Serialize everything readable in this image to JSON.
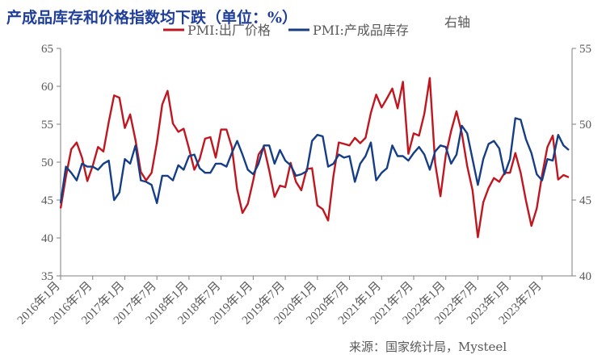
{
  "chart_data": {
    "type": "line",
    "title": "产成品库存和价格指数均下跌（单位：%）",
    "right_axis_note": "右轴",
    "source": "来源：国家统计局，Mysteel",
    "y_left": {
      "min": 35,
      "max": 65,
      "ticks": [
        "35",
        "40",
        "45",
        "50",
        "55",
        "60",
        "65"
      ]
    },
    "y_right": {
      "min": 40,
      "max": 55,
      "ticks": [
        "40",
        "45",
        "50",
        "55"
      ]
    },
    "x_tick_labels": [
      "2016年1月",
      "2016年7月",
      "2017年1月",
      "2017年7月",
      "2018年1月",
      "2018年7月",
      "2019年1月",
      "2019年7月",
      "2020年1月",
      "2020年7月",
      "2021年1月",
      "2021年7月",
      "2022年1月",
      "2022年7月",
      "2023年1月",
      "2023年7月"
    ],
    "colors": {
      "series1": "#c0161f",
      "series2": "#163e86",
      "axis": "#7f7f7f",
      "title": "#1f3f99"
    },
    "series": [
      {
        "name": "PMI:出厂价格",
        "axis": "left",
        "values": [
          43.9,
          48.1,
          51.7,
          52.6,
          50.6,
          47.5,
          49.5,
          52.0,
          51.4,
          55.3,
          58.8,
          58.5,
          54.5,
          56.3,
          52.9,
          48.7,
          47.6,
          48.6,
          52.6,
          57.6,
          59.4,
          55.1,
          54.0,
          54.4,
          51.8,
          49.0,
          50.4,
          53.1,
          53.3,
          50.6,
          54.3,
          54.3,
          52.0,
          46.4,
          43.3,
          44.5,
          47.6,
          51.0,
          52.0,
          48.9,
          45.4,
          46.9,
          46.7,
          49.9,
          47.4,
          46.3,
          49.1,
          49.2,
          44.3,
          43.8,
          42.3,
          48.2,
          52.6,
          52.4,
          52.2,
          53.2,
          52.5,
          53.2,
          56.5,
          58.9,
          57.2,
          58.4,
          59.7,
          57.1,
          60.6,
          51.1,
          53.8,
          53.5,
          56.4,
          61.1,
          49.9,
          45.5,
          50.9,
          54.1,
          56.7,
          53.8,
          49.5,
          46.3,
          40.1,
          44.7,
          46.6,
          47.9,
          47.4,
          48.6,
          48.6,
          51.2,
          48.6,
          44.9,
          41.6,
          43.9,
          48.3,
          52.0,
          53.5,
          47.7,
          48.3,
          48.0
        ]
      },
      {
        "name": "PMI:产成品库存",
        "axis": "right",
        "values": [
          44.8,
          47.2,
          46.8,
          46.3,
          47.4,
          47.2,
          47.2,
          47.0,
          47.4,
          47.6,
          45.0,
          45.5,
          47.7,
          47.4,
          48.6,
          46.3,
          46.2,
          46.0,
          44.8,
          46.6,
          46.6,
          46.3,
          47.3,
          47.0,
          47.9,
          48.0,
          47.1,
          46.8,
          46.8,
          47.4,
          47.4,
          47.2,
          48.1,
          48.9,
          48.0,
          47.0,
          46.7,
          47.4,
          48.6,
          48.6,
          47.4,
          48.3,
          47.6,
          47.3,
          46.6,
          46.7,
          46.9,
          48.9,
          49.3,
          49.2,
          47.2,
          47.4,
          48.0,
          47.8,
          47.9,
          46.2,
          47.4,
          47.9,
          48.8,
          46.3,
          46.8,
          47.1,
          48.6,
          47.9,
          47.9,
          47.6,
          48.1,
          48.5,
          48.0,
          47.0,
          48.2,
          48.6,
          48.5,
          47.4,
          48.0,
          49.9,
          49.4,
          47.7,
          46.0,
          47.7,
          48.7,
          48.9,
          48.4,
          46.7,
          47.7,
          50.4,
          50.3,
          49.0,
          48.1,
          46.7,
          46.3,
          47.7,
          47.6,
          49.3,
          48.6,
          48.3
        ]
      }
    ],
    "grid": false,
    "legend_position": "top"
  }
}
